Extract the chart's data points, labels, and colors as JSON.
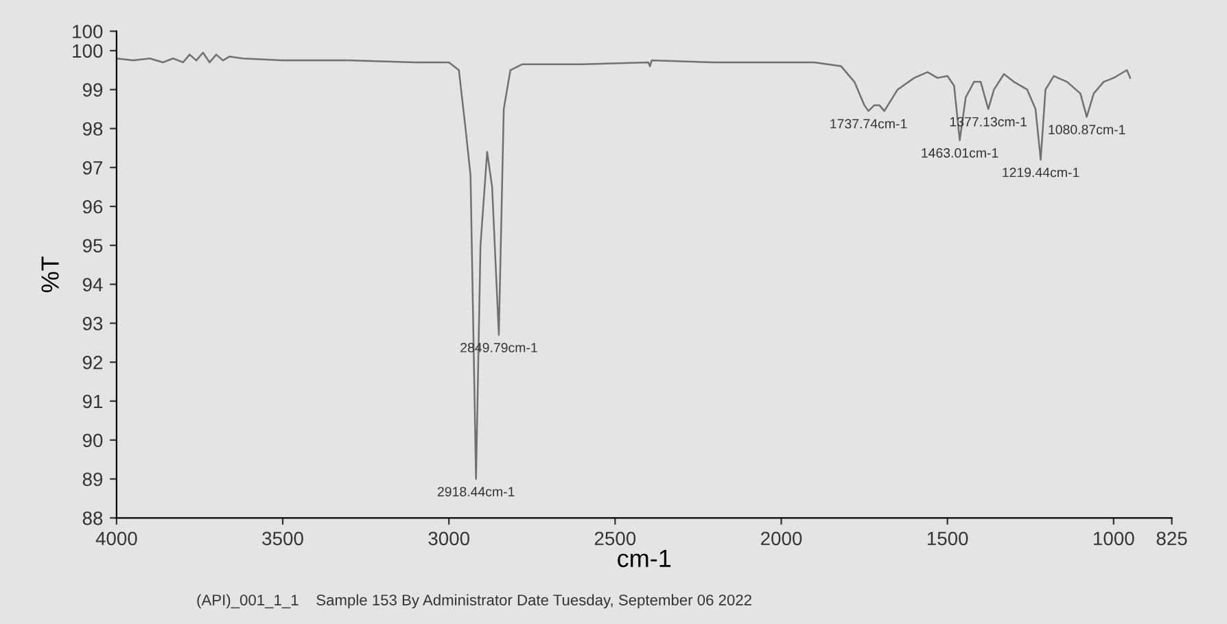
{
  "chart_data": {
    "type": "line",
    "xlabel": "cm-1",
    "ylabel": "%T",
    "xlim": [
      4000,
      825
    ],
    "xticks": [
      4000,
      3500,
      3000,
      2500,
      2000,
      1500,
      1000,
      825
    ],
    "ylim": [
      88,
      100.5
    ],
    "yticks": [
      88,
      89,
      90,
      91,
      92,
      93,
      94,
      95,
      96,
      97,
      98,
      99,
      100,
      {
        "value": 100.5,
        "label": "100"
      }
    ],
    "grid": false,
    "legend": false,
    "series": [
      {
        "color": "#707070",
        "x": [
          4000,
          3950,
          3900,
          3860,
          3830,
          3800,
          3780,
          3760,
          3740,
          3720,
          3700,
          3680,
          3660,
          3620,
          3500,
          3300,
          3100,
          3000,
          2970,
          2950,
          2935,
          2918.44,
          2905,
          2885,
          2870,
          2849.79,
          2835,
          2815,
          2780,
          2600,
          2400,
          2395,
          2390,
          2200,
          1900,
          1820,
          1780,
          1750,
          1737.74,
          1720,
          1705,
          1690,
          1650,
          1600,
          1560,
          1530,
          1500,
          1480,
          1463.01,
          1445,
          1420,
          1400,
          1377.13,
          1360,
          1330,
          1300,
          1260,
          1235,
          1219.44,
          1205,
          1180,
          1140,
          1100,
          1080.87,
          1060,
          1030,
          1000,
          980,
          960,
          950
        ],
        "values": [
          99.8,
          99.75,
          99.8,
          99.7,
          99.8,
          99.7,
          99.9,
          99.75,
          99.95,
          99.7,
          99.9,
          99.75,
          99.85,
          99.8,
          99.75,
          99.75,
          99.7,
          99.7,
          99.5,
          98.0,
          96.8,
          89.0,
          95.0,
          97.4,
          96.5,
          92.7,
          98.5,
          99.5,
          99.65,
          99.65,
          99.7,
          99.6,
          99.75,
          99.7,
          99.7,
          99.6,
          99.2,
          98.6,
          98.45,
          98.6,
          98.6,
          98.45,
          99.0,
          99.3,
          99.45,
          99.3,
          99.35,
          99.1,
          97.7,
          98.8,
          99.2,
          99.2,
          98.5,
          99.0,
          99.4,
          99.2,
          99.0,
          98.5,
          97.2,
          99.0,
          99.35,
          99.2,
          98.9,
          98.3,
          98.9,
          99.2,
          99.3,
          99.4,
          99.5,
          99.3
        ]
      }
    ],
    "annotations": [
      {
        "text": "2918.44cm-1",
        "x": 2918.44,
        "y": 89.0
      },
      {
        "text": "2849.79cm-1",
        "x": 2849.79,
        "y": 92.7
      },
      {
        "text": "1737.74cm-1",
        "x": 1737.74,
        "y": 98.45
      },
      {
        "text": "1463.01cm-1",
        "x": 1463.01,
        "y": 97.7
      },
      {
        "text": "1377.13cm-1",
        "x": 1377.13,
        "y": 98.5
      },
      {
        "text": "1219.44cm-1",
        "x": 1219.44,
        "y": 97.2
      },
      {
        "text": "1080.87cm-1",
        "x": 1080.87,
        "y": 98.3
      },
      "(API)_001_1_1    Sample 153 By Administrator Date Tuesday, September 06 2022"
    ]
  }
}
